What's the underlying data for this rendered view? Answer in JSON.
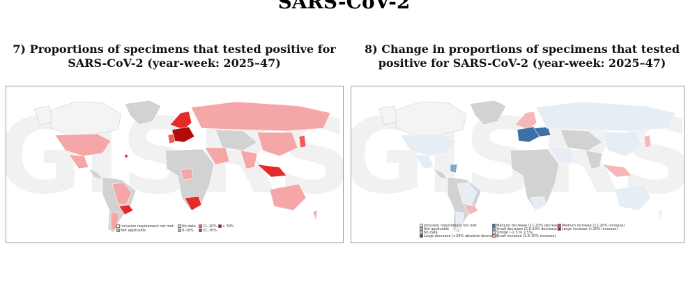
{
  "header": {
    "title": "SARS-CoV-2"
  },
  "panel7": {
    "title_line1": "7) Proportions of specimens that tested positive for",
    "title_line2": "SARS-CoV-2 (year-week: 2025–47)",
    "watermark": "GISRS",
    "legend": [
      {
        "label": "Inclusion requirement not met",
        "color": "#f4f4f4"
      },
      {
        "label": "No data",
        "color": "#cfcfcf"
      },
      {
        "label": "11–20%",
        "color": "#ef5c5c"
      },
      {
        "label": "> 30%",
        "color": "#b50a0a"
      },
      {
        "label": "Not applicable",
        "color": "#b3b3b3"
      },
      {
        "label": "0–10%",
        "color": "#f5a7a7"
      },
      {
        "label": "21–30%",
        "color": "#e42a2a"
      }
    ]
  },
  "panel8": {
    "title_line1": "8) Change in proportions of specimens that tested",
    "title_line2": "positive for SARS-CoV-2 (year-week: 2025–47)",
    "watermark": "GISRS",
    "legend": [
      {
        "label": "Inclusion requirement not met",
        "color": "#f4f4f4"
      },
      {
        "label": "Not applicable",
        "color": "#b3b3b3"
      },
      {
        "label": "No data",
        "color": "#cfcfcf"
      },
      {
        "label": "Large decrease (>20% absolute decrease)",
        "color": "#1f3f8f"
      },
      {
        "label": "Medium decrease (11-20% decrease)",
        "color": "#3e6fa6"
      },
      {
        "label": "Small decrease (2.6-10% decrease)",
        "color": "#7fa6c9"
      },
      {
        "label": "Similar (-2.5 to 2.5%)",
        "color": "#e6edf5"
      },
      {
        "label": "Small increase (2.6-10% increase)",
        "color": "#f5b7b7"
      },
      {
        "label": "Medium increase (11-20% increase)",
        "color": "#e63b3b"
      },
      {
        "label": "Large increase (>20% increase)",
        "color": "#b80f0f"
      }
    ]
  }
}
